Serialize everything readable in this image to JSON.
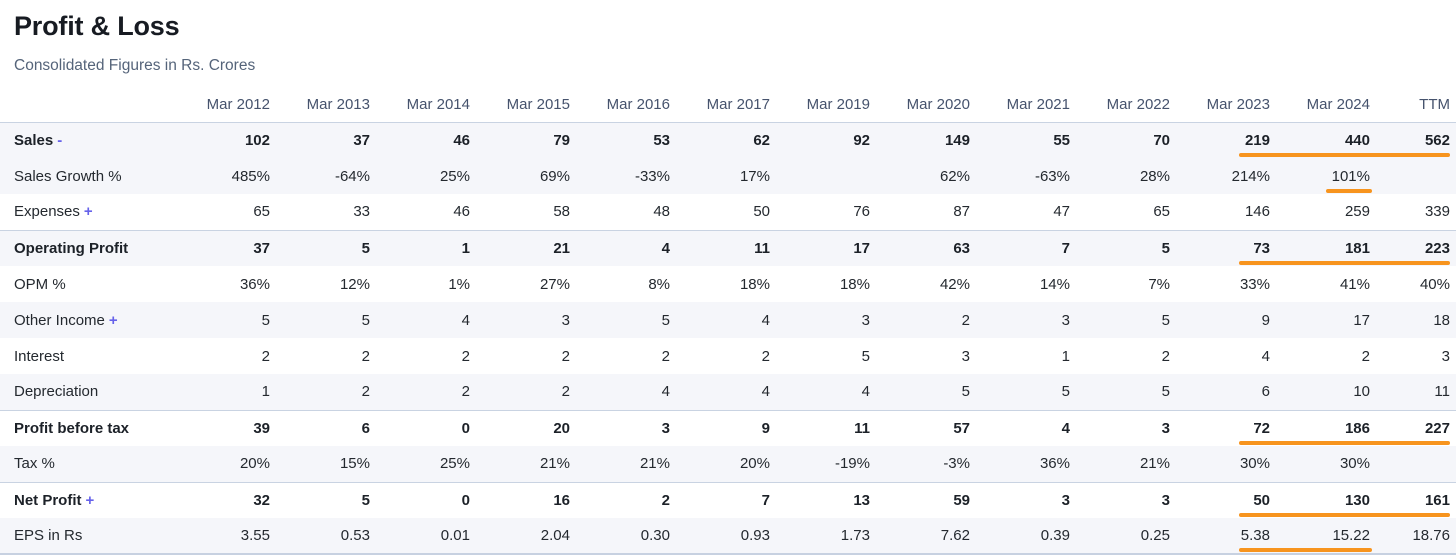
{
  "header": {
    "title": "Profit & Loss",
    "subtitle": "Consolidated Figures in Rs. Crores"
  },
  "colors": {
    "highlight_orange": "#f7941e",
    "toggle_purple": "#6662ea",
    "stripe_background": "#f5f6fa",
    "section_border": "#c9d3e2"
  },
  "table": {
    "columns": [
      "Mar 2012",
      "Mar 2013",
      "Mar 2014",
      "Mar 2015",
      "Mar 2016",
      "Mar 2017",
      "Mar 2019",
      "Mar 2020",
      "Mar 2021",
      "Mar 2022",
      "Mar 2023",
      "Mar 2024",
      "TTM"
    ],
    "rows": [
      {
        "label": "Sales",
        "suffix": "-",
        "bold": true,
        "striped": true,
        "section_start": false,
        "highlight": "full",
        "values": [
          "102",
          "37",
          "46",
          "79",
          "53",
          "62",
          "92",
          "149",
          "55",
          "70",
          "219",
          "440",
          "562"
        ]
      },
      {
        "label": "Sales Growth %",
        "suffix": null,
        "bold": false,
        "striped": true,
        "section_start": false,
        "highlight": "one",
        "values": [
          "485%",
          "-64%",
          "25%",
          "69%",
          "-33%",
          "17%",
          "",
          "62%",
          "-63%",
          "28%",
          "214%",
          "101%",
          ""
        ]
      },
      {
        "label": "Expenses",
        "suffix": "+",
        "bold": false,
        "striped": false,
        "section_start": false,
        "highlight": null,
        "values": [
          "65",
          "33",
          "46",
          "58",
          "48",
          "50",
          "76",
          "87",
          "47",
          "65",
          "146",
          "259",
          "339"
        ]
      },
      {
        "label": "Operating Profit",
        "suffix": null,
        "bold": true,
        "striped": true,
        "section_start": true,
        "highlight": "full",
        "values": [
          "37",
          "5",
          "1",
          "21",
          "4",
          "11",
          "17",
          "63",
          "7",
          "5",
          "73",
          "181",
          "223"
        ]
      },
      {
        "label": "OPM %",
        "suffix": null,
        "bold": false,
        "striped": false,
        "section_start": false,
        "highlight": null,
        "values": [
          "36%",
          "12%",
          "1%",
          "27%",
          "8%",
          "18%",
          "18%",
          "42%",
          "14%",
          "7%",
          "33%",
          "41%",
          "40%"
        ]
      },
      {
        "label": "Other Income",
        "suffix": "+",
        "bold": false,
        "striped": true,
        "section_start": false,
        "highlight": null,
        "values": [
          "5",
          "5",
          "4",
          "3",
          "5",
          "4",
          "3",
          "2",
          "3",
          "5",
          "9",
          "17",
          "18"
        ]
      },
      {
        "label": "Interest",
        "suffix": null,
        "bold": false,
        "striped": false,
        "section_start": false,
        "highlight": null,
        "values": [
          "2",
          "2",
          "2",
          "2",
          "2",
          "2",
          "5",
          "3",
          "1",
          "2",
          "4",
          "2",
          "3"
        ]
      },
      {
        "label": "Depreciation",
        "suffix": null,
        "bold": false,
        "striped": true,
        "section_start": false,
        "highlight": null,
        "values": [
          "1",
          "2",
          "2",
          "2",
          "4",
          "4",
          "4",
          "5",
          "5",
          "5",
          "6",
          "10",
          "11"
        ]
      },
      {
        "label": "Profit before tax",
        "suffix": null,
        "bold": true,
        "striped": false,
        "section_start": true,
        "highlight": "full",
        "values": [
          "39",
          "6",
          "0",
          "20",
          "3",
          "9",
          "11",
          "57",
          "4",
          "3",
          "72",
          "186",
          "227"
        ]
      },
      {
        "label": "Tax %",
        "suffix": null,
        "bold": false,
        "striped": true,
        "section_start": false,
        "highlight": null,
        "values": [
          "20%",
          "15%",
          "25%",
          "21%",
          "21%",
          "20%",
          "-19%",
          "-3%",
          "36%",
          "21%",
          "30%",
          "30%",
          ""
        ]
      },
      {
        "label": "Net Profit",
        "suffix": "+",
        "bold": true,
        "striped": false,
        "section_start": true,
        "highlight": "full",
        "values": [
          "32",
          "5",
          "0",
          "16",
          "2",
          "7",
          "13",
          "59",
          "3",
          "3",
          "50",
          "130",
          "161"
        ]
      },
      {
        "label": "EPS in Rs",
        "suffix": null,
        "bold": false,
        "striped": true,
        "section_start": false,
        "highlight": "two",
        "values": [
          "3.55",
          "0.53",
          "0.01",
          "2.04",
          "0.30",
          "0.93",
          "1.73",
          "7.62",
          "0.39",
          "0.25",
          "5.38",
          "15.22",
          "18.76"
        ]
      }
    ]
  }
}
